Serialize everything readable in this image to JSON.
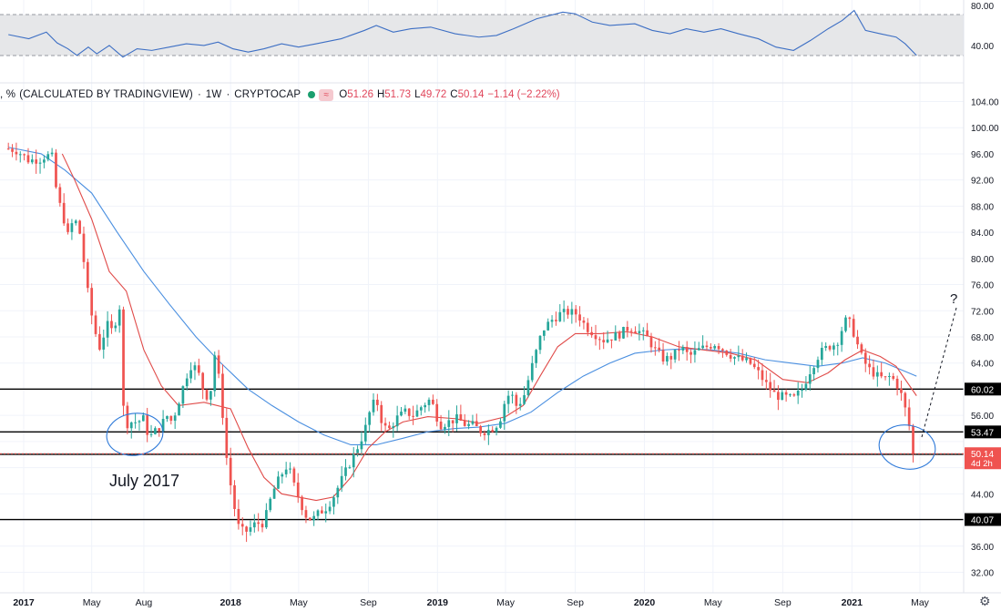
{
  "legend": {
    "prefix": ", %",
    "source": "(CALCULATED BY TRADINGVIEW)",
    "interval": "1W",
    "exchange": "CRYPTOCAP",
    "o": "51.26",
    "h": "51.73",
    "l": "49.72",
    "c": "50.14",
    "change": "−1.14 (−2.22%)",
    "o_label": "O",
    "h_label": "H",
    "l_label": "L",
    "c_label": "C"
  },
  "annotations": {
    "july_text": "July 2017",
    "question": "?"
  },
  "price_tags": {
    "last": "50.14",
    "countdown": "4d 2h"
  },
  "rsi_axis": [
    "80.00",
    "40.00"
  ],
  "chart_data": {
    "type": "candlestick",
    "y_ticks": [
      "104.00",
      "100.00",
      "96.00",
      "92.00",
      "88.00",
      "84.00",
      "80.00",
      "76.00",
      "72.00",
      "68.00",
      "64.00",
      "60.00",
      "56.00",
      "52.00",
      "48.00",
      "44.00",
      "40.00",
      "36.00",
      "32.00"
    ],
    "ylim": [
      29.5,
      106
    ],
    "x_ticks": [
      {
        "label": "2017",
        "date": "2017-01-01"
      },
      {
        "label": "May",
        "date": "2017-05-01"
      },
      {
        "label": "Aug",
        "date": "2017-08-01"
      },
      {
        "label": "2018",
        "date": "2018-01-01"
      },
      {
        "label": "May",
        "date": "2018-05-01"
      },
      {
        "label": "Sep",
        "date": "2018-09-01"
      },
      {
        "label": "2019",
        "date": "2019-01-01"
      },
      {
        "label": "May",
        "date": "2019-05-01"
      },
      {
        "label": "Sep",
        "date": "2019-09-01"
      },
      {
        "label": "2020",
        "date": "2020-01-01"
      },
      {
        "label": "May",
        "date": "2020-05-01"
      },
      {
        "label": "Sep",
        "date": "2020-09-01"
      },
      {
        "label": "2021",
        "date": "2021-01-01"
      },
      {
        "label": "May",
        "date": "2021-05-01"
      }
    ],
    "horizontal_levels": [
      {
        "value": 60.02,
        "label": "60.02"
      },
      {
        "value": 53.47,
        "label": "53.47"
      },
      {
        "value": 50.04,
        "label": "50.04"
      },
      {
        "value": 40.07,
        "label": "40.07"
      }
    ],
    "close_path": [
      [
        "2016-12-05",
        96.8
      ],
      [
        "2016-12-20",
        96.5
      ],
      [
        "2017-01-10",
        95.0
      ],
      [
        "2017-01-31",
        95.2
      ],
      [
        "2017-02-10",
        95.8
      ],
      [
        "2017-02-20",
        95.5
      ],
      [
        "2017-03-01",
        89.5
      ],
      [
        "2017-03-10",
        87.0
      ],
      [
        "2017-03-20",
        83.5
      ],
      [
        "2017-03-30",
        86.0
      ],
      [
        "2017-04-08",
        85.0
      ],
      [
        "2017-04-15",
        81.0
      ],
      [
        "2017-04-22",
        76.0
      ],
      [
        "2017-04-29",
        72.0
      ],
      [
        "2017-05-06",
        69.5
      ],
      [
        "2017-05-13",
        66.0
      ],
      [
        "2017-05-20",
        67.5
      ],
      [
        "2017-05-27",
        70.0
      ],
      [
        "2017-06-05",
        69.0
      ],
      [
        "2017-06-15",
        71.0
      ],
      [
        "2017-06-20",
        73.0
      ],
      [
        "2017-06-27",
        54.5
      ],
      [
        "2017-07-10",
        55.0
      ],
      [
        "2017-07-20",
        55.0
      ],
      [
        "2017-08-01",
        55.5
      ],
      [
        "2017-08-10",
        52.5
      ],
      [
        "2017-08-20",
        53.5
      ],
      [
        "2017-09-01",
        54.5
      ],
      [
        "2017-09-10",
        56.0
      ],
      [
        "2017-09-20",
        55.0
      ],
      [
        "2017-10-01",
        58.0
      ],
      [
        "2017-10-15",
        62.0
      ],
      [
        "2017-10-25",
        64.0
      ],
      [
        "2017-11-05",
        62.5
      ],
      [
        "2017-11-15",
        59.5
      ],
      [
        "2017-11-25",
        58.5
      ],
      [
        "2017-12-05",
        66.0
      ],
      [
        "2017-12-15",
        59.0
      ],
      [
        "2017-12-25",
        49.5
      ],
      [
        "2018-01-05",
        43.0
      ],
      [
        "2018-01-15",
        39.0
      ],
      [
        "2018-01-25",
        38.0
      ],
      [
        "2018-02-05",
        38.8
      ],
      [
        "2018-02-15",
        39.5
      ],
      [
        "2018-03-01",
        39.5
      ],
      [
        "2018-03-10",
        42.5
      ],
      [
        "2018-03-20",
        45.0
      ],
      [
        "2018-04-01",
        47.0
      ],
      [
        "2018-04-12",
        48.5
      ],
      [
        "2018-04-22",
        45.5
      ],
      [
        "2018-05-05",
        42.5
      ],
      [
        "2018-05-15",
        40.5
      ],
      [
        "2018-05-25",
        40.0
      ],
      [
        "2018-06-05",
        41.0
      ],
      [
        "2018-06-20",
        42.0
      ],
      [
        "2018-07-01",
        43.5
      ],
      [
        "2018-07-15",
        46.0
      ],
      [
        "2018-08-01",
        49.0
      ],
      [
        "2018-08-15",
        51.5
      ],
      [
        "2018-08-25",
        53.5
      ],
      [
        "2018-09-05",
        57.0
      ],
      [
        "2018-09-15",
        58.5
      ],
      [
        "2018-09-25",
        55.0
      ],
      [
        "2018-10-05",
        53.5
      ],
      [
        "2018-10-20",
        55.5
      ],
      [
        "2018-11-05",
        56.5
      ],
      [
        "2018-11-20",
        56.0
      ],
      [
        "2018-12-05",
        57.5
      ],
      [
        "2018-12-20",
        58.5
      ],
      [
        "2019-01-05",
        54.5
      ],
      [
        "2019-01-20",
        55.0
      ],
      [
        "2019-02-05",
        55.5
      ],
      [
        "2019-02-20",
        54.5
      ],
      [
        "2019-03-05",
        54.5
      ],
      [
        "2019-03-20",
        53.5
      ],
      [
        "2019-04-05",
        53.8
      ],
      [
        "2019-04-20",
        55.0
      ],
      [
        "2019-05-01",
        58.5
      ],
      [
        "2019-05-10",
        59.5
      ],
      [
        "2019-05-20",
        57.5
      ],
      [
        "2019-06-01",
        58.5
      ],
      [
        "2019-06-15",
        63.0
      ],
      [
        "2019-06-25",
        66.0
      ],
      [
        "2019-07-05",
        69.0
      ],
      [
        "2019-07-20",
        70.5
      ],
      [
        "2019-08-05",
        71.5
      ],
      [
        "2019-08-20",
        71.8
      ],
      [
        "2019-09-05",
        71.5
      ],
      [
        "2019-09-20",
        69.5
      ],
      [
        "2019-10-05",
        68.5
      ],
      [
        "2019-10-20",
        67.5
      ],
      [
        "2019-11-05",
        68.0
      ],
      [
        "2019-11-20",
        68.5
      ],
      [
        "2019-12-05",
        69.5
      ],
      [
        "2019-12-20",
        69.0
      ],
      [
        "2020-01-05",
        68.0
      ],
      [
        "2020-01-20",
        66.0
      ],
      [
        "2020-02-05",
        64.5
      ],
      [
        "2020-02-20",
        65.0
      ],
      [
        "2020-03-05",
        66.5
      ],
      [
        "2020-03-20",
        65.0
      ],
      [
        "2020-04-05",
        66.0
      ],
      [
        "2020-04-20",
        66.5
      ],
      [
        "2020-05-05",
        67.0
      ],
      [
        "2020-05-20",
        66.0
      ],
      [
        "2020-06-05",
        65.0
      ],
      [
        "2020-06-20",
        64.5
      ],
      [
        "2020-07-05",
        64.0
      ],
      [
        "2020-07-20",
        62.5
      ],
      [
        "2020-08-05",
        60.5
      ],
      [
        "2020-08-20",
        59.0
      ],
      [
        "2020-09-05",
        58.8
      ],
      [
        "2020-09-20",
        58.5
      ],
      [
        "2020-10-05",
        60.0
      ],
      [
        "2020-10-20",
        63.0
      ],
      [
        "2020-11-05",
        65.5
      ],
      [
        "2020-11-20",
        66.5
      ],
      [
        "2020-12-05",
        67.0
      ],
      [
        "2020-12-20",
        70.5
      ],
      [
        "2020-12-30",
        70.0
      ],
      [
        "2021-01-10",
        67.0
      ],
      [
        "2021-01-20",
        64.5
      ],
      [
        "2021-02-01",
        63.0
      ],
      [
        "2021-02-15",
        62.0
      ],
      [
        "2021-02-28",
        61.5
      ],
      [
        "2021-03-10",
        62.0
      ],
      [
        "2021-03-20",
        61.0
      ],
      [
        "2021-04-01",
        58.5
      ],
      [
        "2021-04-10",
        55.0
      ],
      [
        "2021-04-18",
        52.5
      ],
      [
        "2021-04-25",
        50.14
      ]
    ],
    "ma_red": [
      [
        "2017-03-10",
        96.0
      ],
      [
        "2017-04-01",
        92.0
      ],
      [
        "2017-05-01",
        86.0
      ],
      [
        "2017-06-01",
        78.0
      ],
      [
        "2017-07-01",
        75.0
      ],
      [
        "2017-08-01",
        66.0
      ],
      [
        "2017-09-01",
        60.5
      ],
      [
        "2017-10-01",
        57.5
      ],
      [
        "2017-11-15",
        58.0
      ],
      [
        "2018-01-01",
        57.0
      ],
      [
        "2018-02-01",
        51.0
      ],
      [
        "2018-03-01",
        46.5
      ],
      [
        "2018-04-01",
        44.0
      ],
      [
        "2018-05-01",
        43.5
      ],
      [
        "2018-06-01",
        43.0
      ],
      [
        "2018-07-01",
        43.5
      ],
      [
        "2018-08-01",
        46.5
      ],
      [
        "2018-09-01",
        51.0
      ],
      [
        "2018-10-01",
        53.5
      ],
      [
        "2018-11-01",
        55.0
      ],
      [
        "2018-12-15",
        55.8
      ],
      [
        "2019-02-01",
        55.5
      ],
      [
        "2019-03-15",
        54.8
      ],
      [
        "2019-05-01",
        55.8
      ],
      [
        "2019-06-01",
        57.5
      ],
      [
        "2019-07-01",
        62.0
      ],
      [
        "2019-08-01",
        66.5
      ],
      [
        "2019-09-01",
        68.5
      ],
      [
        "2019-10-15",
        68.5
      ],
      [
        "2019-12-01",
        68.8
      ],
      [
        "2020-01-15",
        68.0
      ],
      [
        "2020-03-01",
        66.5
      ],
      [
        "2020-04-15",
        66.0
      ],
      [
        "2020-06-01",
        65.5
      ],
      [
        "2020-07-15",
        64.5
      ],
      [
        "2020-09-01",
        61.5
      ],
      [
        "2020-10-15",
        61.0
      ],
      [
        "2020-11-20",
        62.5
      ],
      [
        "2020-12-20",
        64.5
      ],
      [
        "2021-01-20",
        66.0
      ],
      [
        "2021-02-20",
        65.0
      ],
      [
        "2021-03-20",
        63.5
      ],
      [
        "2021-04-25",
        59.0
      ]
    ],
    "ma_blue": [
      [
        "2016-12-05",
        97.0
      ],
      [
        "2017-02-01",
        96.0
      ],
      [
        "2017-03-15",
        93.5
      ],
      [
        "2017-05-01",
        90.0
      ],
      [
        "2017-06-15",
        84.0
      ],
      [
        "2017-08-01",
        78.0
      ],
      [
        "2017-09-15",
        73.0
      ],
      [
        "2017-11-01",
        68.0
      ],
      [
        "2017-12-15",
        64.0
      ],
      [
        "2018-02-01",
        60.0
      ],
      [
        "2018-03-15",
        57.5
      ],
      [
        "2018-05-01",
        55.0
      ],
      [
        "2018-06-15",
        53.0
      ],
      [
        "2018-08-01",
        51.5
      ],
      [
        "2018-09-15",
        51.5
      ],
      [
        "2018-11-01",
        52.5
      ],
      [
        "2018-12-15",
        53.5
      ],
      [
        "2019-02-01",
        54.0
      ],
      [
        "2019-03-15",
        54.2
      ],
      [
        "2019-05-01",
        54.8
      ],
      [
        "2019-06-15",
        56.5
      ],
      [
        "2019-08-01",
        59.5
      ],
      [
        "2019-09-15",
        62.0
      ],
      [
        "2019-11-01",
        64.0
      ],
      [
        "2019-12-15",
        65.5
      ],
      [
        "2020-02-01",
        66.0
      ],
      [
        "2020-03-15",
        66.2
      ],
      [
        "2020-05-01",
        66.0
      ],
      [
        "2020-06-15",
        65.5
      ],
      [
        "2020-08-01",
        64.5
      ],
      [
        "2020-09-15",
        64.0
      ],
      [
        "2020-11-01",
        63.5
      ],
      [
        "2020-12-15",
        64.0
      ],
      [
        "2021-01-20",
        64.8
      ],
      [
        "2021-03-01",
        64.0
      ],
      [
        "2021-04-25",
        62.0
      ]
    ],
    "rsi": {
      "ylim": [
        20,
        90
      ],
      "bands": [
        70,
        30
      ],
      "values": [
        [
          "2016-12-05",
          55
        ],
        [
          "2017-01-10",
          50
        ],
        [
          "2017-02-10",
          58
        ],
        [
          "2017-03-01",
          45
        ],
        [
          "2017-03-20",
          38
        ],
        [
          "2017-04-05",
          30
        ],
        [
          "2017-04-25",
          40
        ],
        [
          "2017-05-10",
          32
        ],
        [
          "2017-06-01",
          42
        ],
        [
          "2017-06-25",
          28
        ],
        [
          "2017-07-20",
          38
        ],
        [
          "2017-08-15",
          36
        ],
        [
          "2017-09-15",
          40
        ],
        [
          "2017-10-15",
          44
        ],
        [
          "2017-11-15",
          42
        ],
        [
          "2017-12-10",
          46
        ],
        [
          "2018-01-05",
          38
        ],
        [
          "2018-02-01",
          34
        ],
        [
          "2018-03-01",
          38
        ],
        [
          "2018-04-01",
          44
        ],
        [
          "2018-05-01",
          40
        ],
        [
          "2018-06-01",
          44
        ],
        [
          "2018-07-15",
          50
        ],
        [
          "2018-08-25",
          60
        ],
        [
          "2018-09-15",
          66
        ],
        [
          "2018-10-15",
          58
        ],
        [
          "2018-11-15",
          62
        ],
        [
          "2018-12-20",
          64
        ],
        [
          "2019-02-01",
          56
        ],
        [
          "2019-03-15",
          52
        ],
        [
          "2019-04-15",
          54
        ],
        [
          "2019-05-15",
          62
        ],
        [
          "2019-06-25",
          74
        ],
        [
          "2019-08-10",
          82
        ],
        [
          "2019-09-01",
          80
        ],
        [
          "2019-10-01",
          70
        ],
        [
          "2019-11-01",
          66
        ],
        [
          "2019-12-15",
          68
        ],
        [
          "2020-01-15",
          60
        ],
        [
          "2020-02-15",
          56
        ],
        [
          "2020-03-15",
          62
        ],
        [
          "2020-04-15",
          58
        ],
        [
          "2020-05-15",
          62
        ],
        [
          "2020-06-15",
          56
        ],
        [
          "2020-07-20",
          50
        ],
        [
          "2020-08-20",
          40
        ],
        [
          "2020-09-20",
          36
        ],
        [
          "2020-10-20",
          48
        ],
        [
          "2020-11-20",
          62
        ],
        [
          "2020-12-15",
          72
        ],
        [
          "2021-01-05",
          84
        ],
        [
          "2021-01-25",
          60
        ],
        [
          "2021-02-20",
          56
        ],
        [
          "2021-03-20",
          52
        ],
        [
          "2021-04-05",
          44
        ],
        [
          "2021-04-25",
          30
        ]
      ]
    }
  }
}
